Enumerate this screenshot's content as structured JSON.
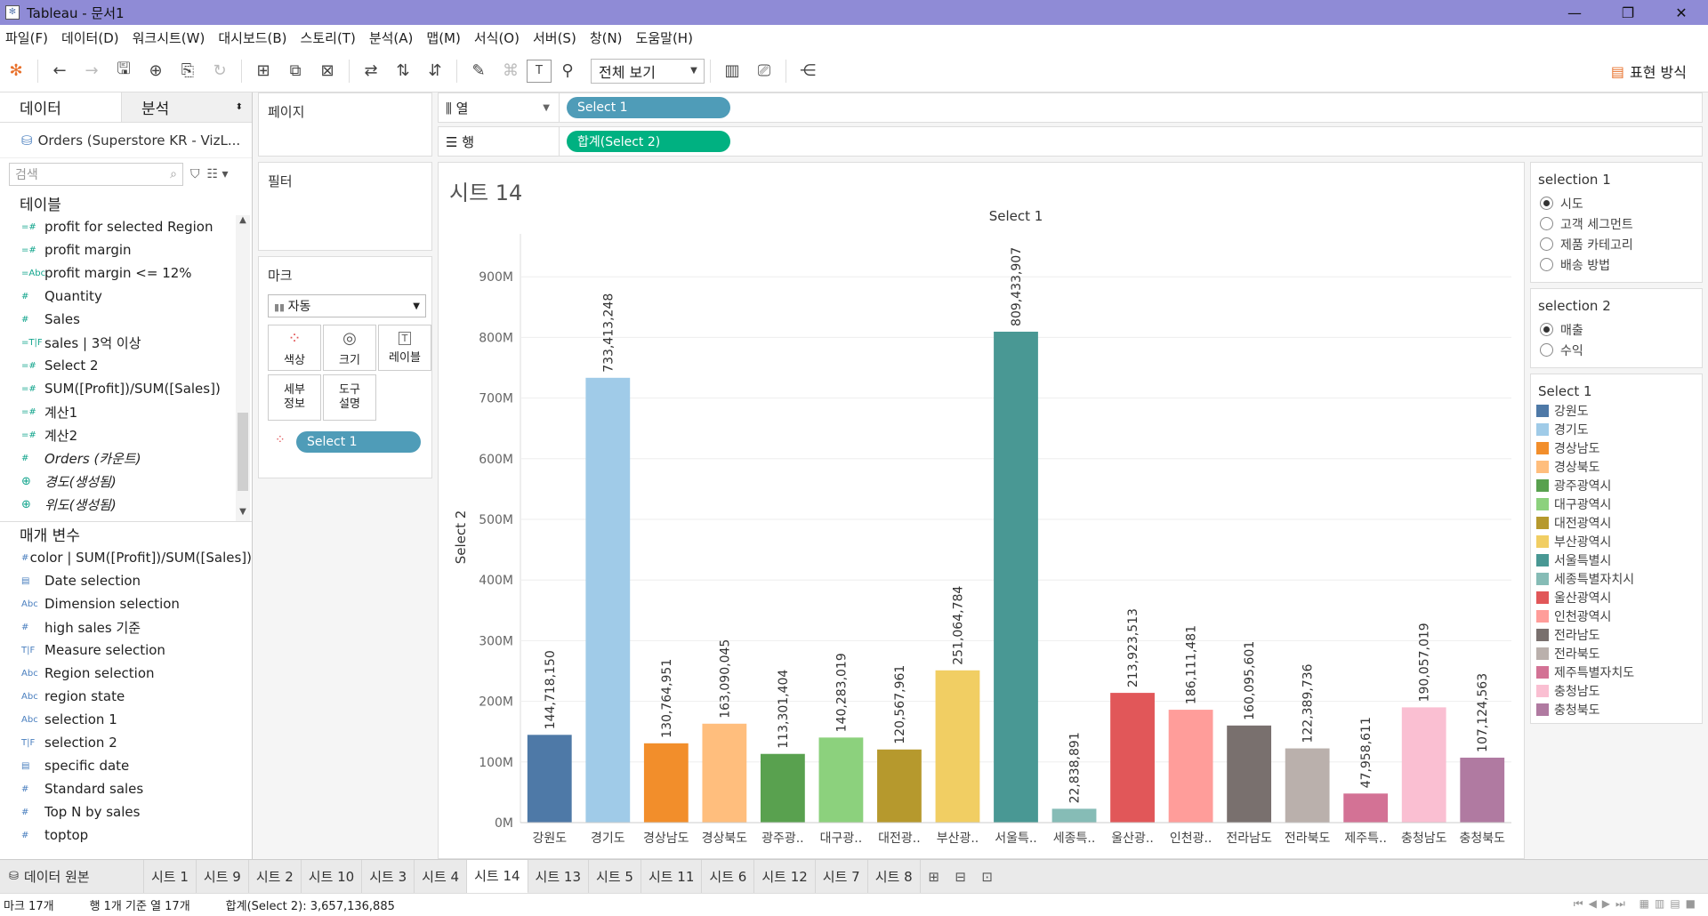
{
  "window": {
    "title": "Tableau - 문서1",
    "min": "—",
    "max": "❐",
    "close": "✕"
  },
  "menu": [
    "파일(F)",
    "데이터(D)",
    "워크시트(W)",
    "대시보드(B)",
    "스토리(T)",
    "분석(A)",
    "맵(M)",
    "서식(O)",
    "서버(S)",
    "창(N)",
    "도움말(H)"
  ],
  "toolbar": {
    "view_mode": "전체 보기",
    "show_me": "표현 방식"
  },
  "data_pane": {
    "tab_data": "데이터",
    "tab_analysis": "분석",
    "datasource": "Orders (Superstore KR - VizL...",
    "search_placeholder": "검색",
    "tables_header": "테이블",
    "tables": [
      {
        "icon": "=#",
        "name": "profit for selected Region",
        "italic": false
      },
      {
        "icon": "=#",
        "name": "profit margin",
        "italic": false
      },
      {
        "icon": "=Abc",
        "name": "profit margin <= 12%",
        "italic": false
      },
      {
        "icon": "#",
        "name": "Quantity",
        "italic": false
      },
      {
        "icon": "#",
        "name": "Sales",
        "italic": false
      },
      {
        "icon": "=T|F",
        "name": "sales | 3억 이상",
        "italic": false
      },
      {
        "icon": "=#",
        "name": "Select 2",
        "italic": false
      },
      {
        "icon": "=#",
        "name": "SUM([Profit])/SUM([Sales])",
        "italic": false
      },
      {
        "icon": "=#",
        "name": "계산1",
        "italic": false
      },
      {
        "icon": "=#",
        "name": "계산2",
        "italic": false
      },
      {
        "icon": "#",
        "name": "Orders (카운트)",
        "italic": true
      },
      {
        "icon": "⊕",
        "name": "경도(생성됨)",
        "italic": true
      },
      {
        "icon": "⊕",
        "name": "위도(생성됨)",
        "italic": true
      }
    ],
    "params_header": "매개 변수",
    "params": [
      {
        "icon": "#",
        "name": "color | SUM([Profit])/SUM([Sales])"
      },
      {
        "icon": "▤",
        "name": "Date selection"
      },
      {
        "icon": "Abc",
        "name": "Dimension selection"
      },
      {
        "icon": "#",
        "name": "high sales 기준"
      },
      {
        "icon": "T|F",
        "name": "Measure selection"
      },
      {
        "icon": "Abc",
        "name": "Region selection"
      },
      {
        "icon": "Abc",
        "name": "region state"
      },
      {
        "icon": "Abc",
        "name": "selection 1"
      },
      {
        "icon": "T|F",
        "name": "selection 2"
      },
      {
        "icon": "▤",
        "name": "specific date"
      },
      {
        "icon": "#",
        "name": "Standard sales"
      },
      {
        "icon": "#",
        "name": "Top N by sales"
      },
      {
        "icon": "#",
        "name": "toptop"
      }
    ]
  },
  "shelves": {
    "pages": "페이지",
    "filters": "필터",
    "marks": "마크",
    "mark_type": "자동",
    "btn_color": "색상",
    "btn_size": "크기",
    "btn_label": "레이블",
    "btn_detail": "세부\n정보",
    "btn_tooltip": "도구\n설명",
    "marks_pill": "Select 1",
    "columns_label": "열",
    "rows_label": "행",
    "columns_pill": "Select 1",
    "rows_pill": "합계(Select 2)"
  },
  "sheet": {
    "title": "시트 14"
  },
  "chart_data": {
    "type": "bar",
    "title": "Select 1",
    "ylabel": "Select 2",
    "xlabel": "",
    "ylim": [
      0,
      1000000000
    ],
    "yticks": [
      0,
      100000000,
      200000000,
      300000000,
      400000000,
      500000000,
      600000000,
      700000000,
      800000000,
      900000000
    ],
    "ytick_labels": [
      "0M",
      "100M",
      "200M",
      "300M",
      "400M",
      "500M",
      "600M",
      "700M",
      "800M",
      "900M"
    ],
    "categories": [
      "강원도",
      "경기도",
      "경상남도",
      "경상북도",
      "광주광..",
      "대구광..",
      "대전광..",
      "부산광..",
      "서울특..",
      "세종특..",
      "울산광..",
      "인천광..",
      "전라남도",
      "전라북도",
      "제주특..",
      "충청남도",
      "충청북도"
    ],
    "values": [
      144718150,
      733413248,
      130764951,
      163090045,
      113301404,
      140283019,
      120567961,
      251064784,
      809433907,
      22838891,
      213923513,
      186111481,
      160095601,
      122389736,
      47958611,
      190057019,
      107124563
    ],
    "labels": [
      "144,718,150",
      "733,413,248",
      "130,764,951",
      "163,090,045",
      "113,301,404",
      "140,283,019",
      "120,567,961",
      "251,064,784",
      "809,433,907",
      "22,838,891",
      "213,923,513",
      "186,111,481",
      "160,095,601",
      "122,389,736",
      "47,958,611",
      "190,057,019",
      "107,124,563"
    ],
    "colors": [
      "#4e79a7",
      "#a0cbe8",
      "#f28e2b",
      "#ffbe7d",
      "#59a14f",
      "#8cd17d",
      "#b6992d",
      "#f1ce63",
      "#499894",
      "#86bcb6",
      "#e15759",
      "#ff9d9a",
      "#79706e",
      "#bab0ac",
      "#d37295",
      "#fabfd2",
      "#b07aa1"
    ]
  },
  "legends": {
    "selection1": {
      "title": "selection 1",
      "options": [
        "시도",
        "고객 세그먼트",
        "제품 카테고리",
        "배송 방법"
      ],
      "selected": 0
    },
    "selection2": {
      "title": "selection 2",
      "options": [
        "매출",
        "수익"
      ],
      "selected": 0
    },
    "color": {
      "title": "Select 1",
      "items": [
        "강원도",
        "경기도",
        "경상남도",
        "경상북도",
        "광주광역시",
        "대구광역시",
        "대전광역시",
        "부산광역시",
        "서울특별시",
        "세종특별자치시",
        "울산광역시",
        "인천광역시",
        "전라남도",
        "전라북도",
        "제주특별자치도",
        "충청남도",
        "충청북도"
      ]
    }
  },
  "tabs": {
    "source": "데이터 원본",
    "sheets": [
      "시트 1",
      "시트 9",
      "시트 2",
      "시트 10",
      "시트 3",
      "시트 4",
      "시트 14",
      "시트 13",
      "시트 5",
      "시트 11",
      "시트 6",
      "시트 12",
      "시트 7",
      "시트 8"
    ],
    "active": "시트 14"
  },
  "status": {
    "marks": "마크 17개",
    "rows_cols": "행 1개 기준 열 17개",
    "sum": "합계(Select 2): 3,657,136,885"
  }
}
